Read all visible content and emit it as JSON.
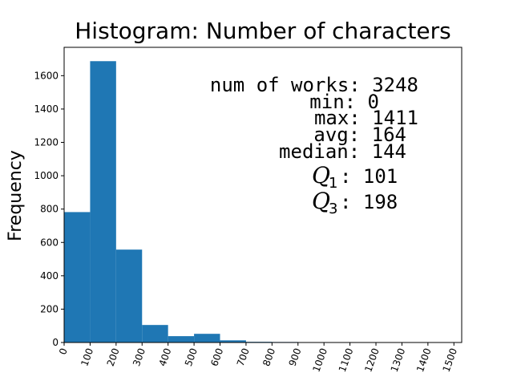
{
  "chart_data": {
    "type": "bar",
    "title": "Histogram: Number of characters",
    "xlabel": "",
    "ylabel": "Frequency",
    "xlim": [
      0,
      1530
    ],
    "ylim": [
      0,
      1770
    ],
    "bin_width": 100,
    "bin_edges": [
      0,
      100,
      200,
      300,
      400,
      500,
      600,
      700,
      800,
      900
    ],
    "values": [
      782,
      1687,
      557,
      105,
      38,
      52,
      13,
      4,
      3
    ],
    "x_ticks": [
      0,
      100,
      200,
      300,
      400,
      500,
      600,
      700,
      800,
      900,
      1000,
      1100,
      1200,
      1300,
      1400,
      1500
    ],
    "y_ticks": [
      0,
      200,
      400,
      600,
      800,
      1000,
      1200,
      1400,
      1600
    ],
    "bar_color": "#1f77b4",
    "grid": false,
    "stats": {
      "num_of_works": "num of works: 3248",
      "min": "min: 0",
      "max": "max: 1411",
      "avg": "avg: 164",
      "median": "median: 144",
      "q1_symbol": "Q",
      "q1_sub": "1",
      "q1_value": ": 101",
      "q3_symbol": "Q",
      "q3_sub": "3",
      "q3_value": ": 198"
    }
  }
}
